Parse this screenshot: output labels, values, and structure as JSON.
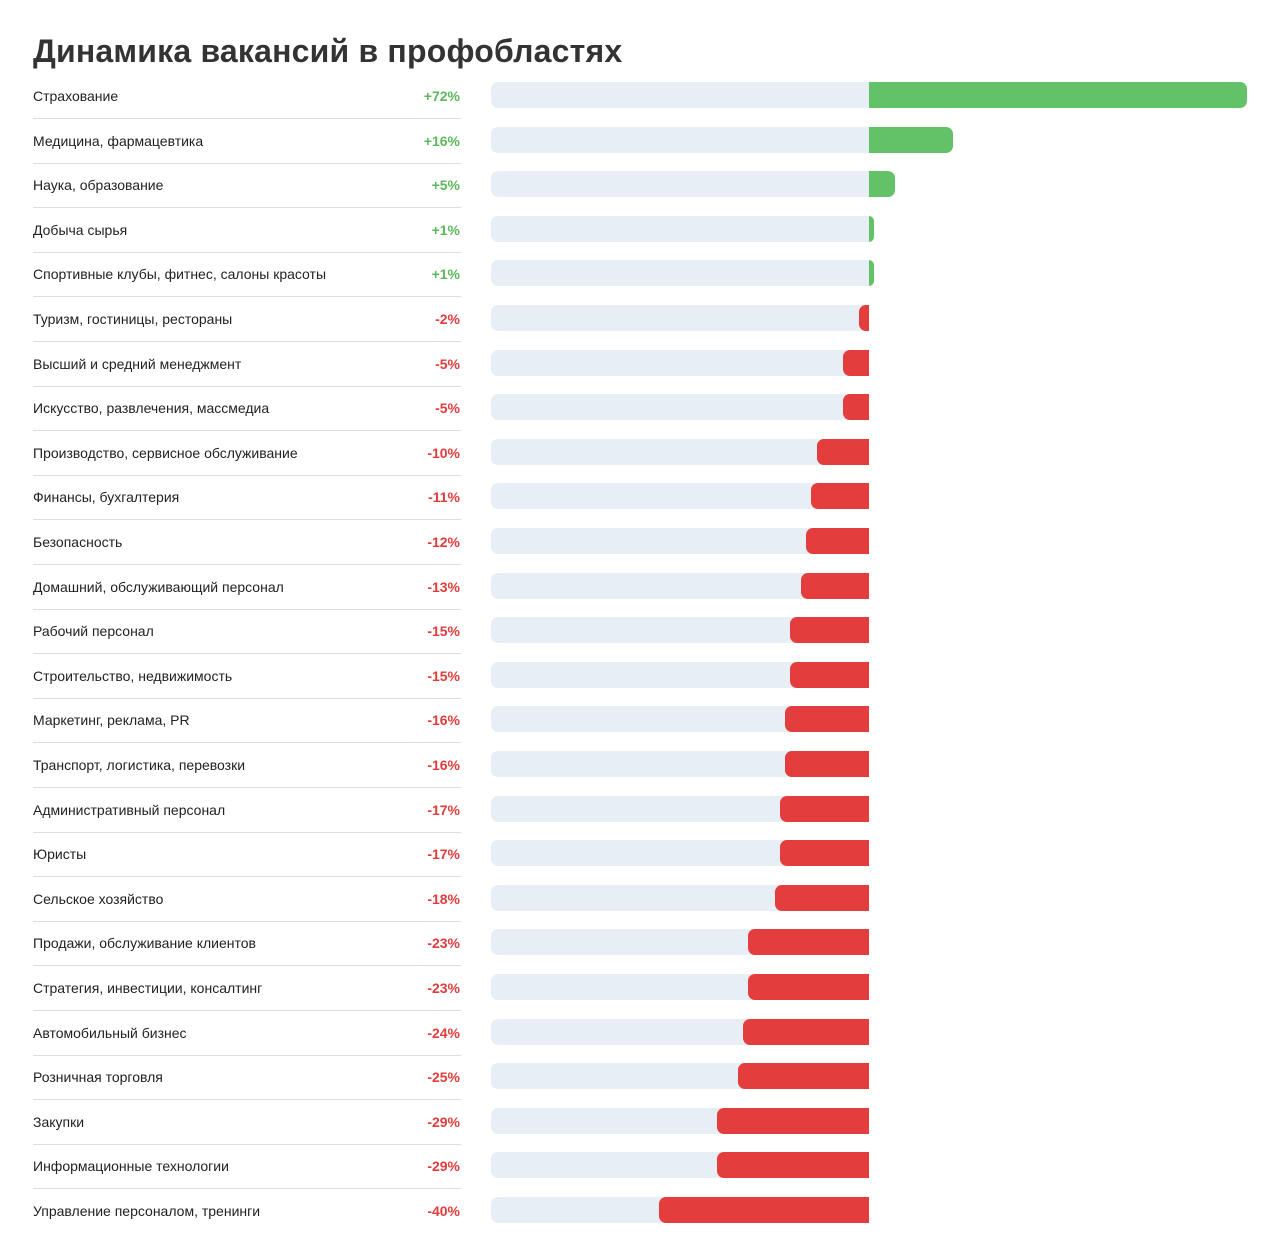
{
  "chart_data": {
    "type": "bar",
    "orientation": "horizontal",
    "title": "Динамика вакансий в профобластях",
    "xlim": [
      -72,
      72
    ],
    "categories": [
      "Страхование",
      "Медицина, фармацевтика",
      "Наука, образование",
      "Добыча сырья",
      "Спортивные клубы, фитнес, салоны красоты",
      "Туризм, гостиницы, рестораны",
      "Высший и средний менеджмент",
      "Искусство, развлечения, массмедиа",
      "Производство, сервисное обслуживание",
      "Финансы, бухгалтерия",
      "Безопасность",
      "Домашний, обслуживающий персонал",
      "Рабочий персонал",
      "Строительство, недвижимость",
      "Маркетинг, реклама, PR",
      "Транспорт, логистика, перевозки",
      "Административный персонал",
      "Юристы",
      "Сельское хозяйство",
      "Продажи, обслуживание клиентов",
      "Стратегия, инвестиции, консалтинг",
      "Автомобильный бизнес",
      "Розничная торговля",
      "Закупки",
      "Информационные технологии",
      "Управление персоналом, тренинги"
    ],
    "values": [
      72,
      16,
      5,
      1,
      1,
      -2,
      -5,
      -5,
      -10,
      -11,
      -12,
      -13,
      -15,
      -15,
      -16,
      -16,
      -17,
      -17,
      -18,
      -23,
      -23,
      -24,
      -25,
      -29,
      -29,
      -40
    ],
    "value_labels": [
      "+72%",
      "+16%",
      "+5%",
      "+1%",
      "+1%",
      "-2%",
      "-5%",
      "-5%",
      "-10%",
      "-11%",
      "-12%",
      "-13%",
      "-15%",
      "-15%",
      "-16%",
      "-16%",
      "-17%",
      "-17%",
      "-18%",
      "-23%",
      "-23%",
      "-24%",
      "-25%",
      "-29%",
      "-29%",
      "-40%"
    ],
    "colors": {
      "positive": "#63c267",
      "negative": "#e43d3d",
      "track": "#e8eef5",
      "positive_text": "#5cb85c",
      "negative_text": "#e03c3c"
    }
  }
}
